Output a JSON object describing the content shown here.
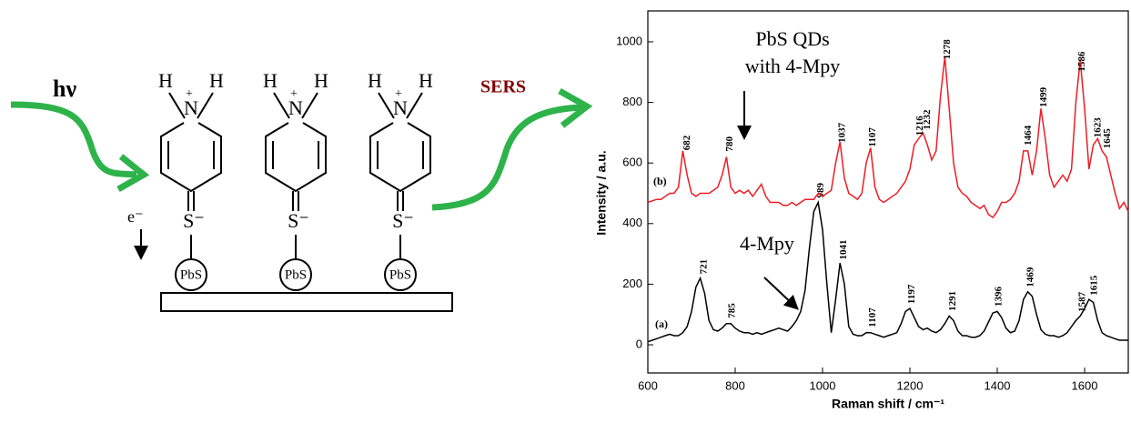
{
  "diagram": {
    "photon": "hν",
    "sers": "SERS",
    "electron": "e⁻",
    "hydrogen": "H",
    "nitrogen": "N",
    "charge": "+",
    "sulfur": "S⁻",
    "particle": "PbS"
  },
  "chart_data": {
    "type": "line",
    "xlabel": "Raman shift / cm⁻¹",
    "ylabel": "Intensity / a.u.",
    "xlim": [
      600,
      1700
    ],
    "xticks": [
      600,
      800,
      1000,
      1200,
      1400,
      1600
    ],
    "ylim": [
      -93,
      1102
    ],
    "yticks": [
      0,
      200,
      400,
      600,
      800,
      1000
    ],
    "annotations": [
      "(a)",
      "(b)",
      "PbS QDs",
      "with 4-Mpy",
      "4-Mpy"
    ],
    "x": [
      600,
      610,
      620,
      630,
      640,
      650,
      660,
      670,
      680,
      690,
      700,
      710,
      720,
      730,
      740,
      750,
      760,
      770,
      780,
      790,
      800,
      810,
      820,
      830,
      840,
      850,
      860,
      870,
      880,
      890,
      900,
      910,
      920,
      930,
      940,
      950,
      960,
      970,
      980,
      990,
      1000,
      1010,
      1020,
      1030,
      1040,
      1050,
      1060,
      1070,
      1080,
      1090,
      1100,
      1110,
      1120,
      1130,
      1140,
      1150,
      1160,
      1170,
      1180,
      1190,
      1200,
      1210,
      1220,
      1230,
      1240,
      1250,
      1260,
      1270,
      1280,
      1290,
      1300,
      1310,
      1320,
      1330,
      1340,
      1350,
      1360,
      1370,
      1380,
      1390,
      1400,
      1410,
      1420,
      1430,
      1440,
      1450,
      1460,
      1470,
      1480,
      1490,
      1500,
      1510,
      1520,
      1530,
      1540,
      1550,
      1560,
      1570,
      1580,
      1590,
      1600,
      1610,
      1620,
      1630,
      1640,
      1650,
      1660,
      1670,
      1680,
      1690,
      1700
    ],
    "series": [
      {
        "name": "(a)",
        "color": "#000000",
        "peaks": [
          721,
          785,
          989,
          1041,
          1107,
          1197,
          1291,
          1396,
          1469,
          1587,
          1615
        ],
        "values": [
          10,
          15,
          20,
          25,
          30,
          35,
          30,
          30,
          40,
          60,
          110,
          190,
          220,
          170,
          80,
          50,
          45,
          55,
          70,
          70,
          55,
          45,
          40,
          40,
          35,
          40,
          35,
          40,
          45,
          50,
          55,
          50,
          45,
          60,
          80,
          110,
          180,
          320,
          440,
          470,
          380,
          200,
          40,
          150,
          270,
          200,
          60,
          35,
          30,
          30,
          40,
          40,
          35,
          30,
          25,
          30,
          35,
          40,
          70,
          110,
          120,
          90,
          60,
          50,
          55,
          45,
          40,
          50,
          70,
          95,
          80,
          45,
          30,
          30,
          25,
          25,
          30,
          45,
          75,
          105,
          110,
          90,
          55,
          40,
          45,
          80,
          150,
          175,
          160,
          100,
          50,
          35,
          30,
          30,
          25,
          30,
          40,
          60,
          80,
          95,
          120,
          150,
          140,
          80,
          40,
          30,
          25,
          20,
          15,
          15,
          15
        ]
      },
      {
        "name": "(b)",
        "color": "#ee1c24",
        "peaks": [
          682,
          780,
          1037,
          1107,
          1216,
          1232,
          1278,
          1464,
          1499,
          1586,
          1623,
          1645
        ],
        "values": [
          470,
          475,
          480,
          480,
          490,
          500,
          500,
          520,
          640,
          560,
          500,
          490,
          500,
          500,
          500,
          510,
          520,
          560,
          620,
          520,
          500,
          510,
          500,
          510,
          490,
          510,
          530,
          490,
          470,
          470,
          470,
          460,
          460,
          470,
          460,
          470,
          480,
          480,
          480,
          500,
          490,
          500,
          510,
          600,
          670,
          550,
          500,
          490,
          480,
          500,
          600,
          650,
          520,
          480,
          470,
          480,
          490,
          500,
          520,
          540,
          580,
          660,
          680,
          700,
          660,
          610,
          640,
          820,
          950,
          780,
          600,
          520,
          500,
          490,
          470,
          460,
          450,
          460,
          430,
          420,
          440,
          470,
          470,
          480,
          500,
          540,
          640,
          640,
          560,
          640,
          780,
          680,
          560,
          520,
          540,
          560,
          540,
          580,
          800,
          940,
          780,
          580,
          660,
          680,
          640,
          620,
          560,
          500,
          450,
          470,
          440
        ]
      }
    ]
  }
}
